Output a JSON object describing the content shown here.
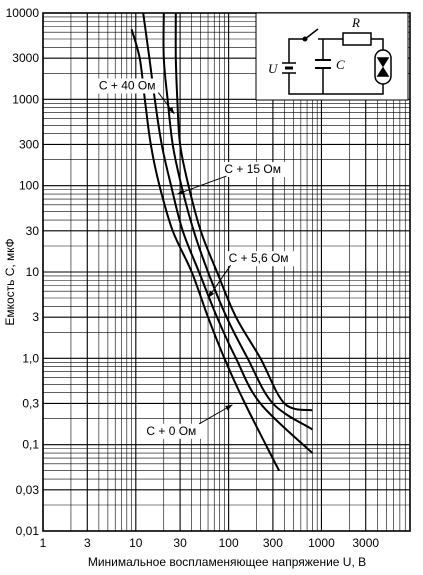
{
  "chart_data": {
    "type": "line",
    "title": "",
    "xlabel": "Минимальное воспламеняющее напряжение U, В",
    "ylabel": "Емкость C, мкФ",
    "xscale": "log",
    "yscale": "log",
    "xlim": [
      1,
      9000
    ],
    "ylim": [
      0.01,
      10000
    ],
    "grid": true,
    "x_ticks": [
      {
        "v": 1,
        "label": "1"
      },
      {
        "v": 3,
        "label": "3"
      },
      {
        "v": 10,
        "label": "10"
      },
      {
        "v": 30,
        "label": "30"
      },
      {
        "v": 100,
        "label": "100"
      },
      {
        "v": 300,
        "label": "300"
      },
      {
        "v": 1000,
        "label": "1000"
      },
      {
        "v": 3000,
        "label": "3000"
      }
    ],
    "y_ticks": [
      {
        "v": 10000,
        "label": "10000"
      },
      {
        "v": 3000,
        "label": "3000"
      },
      {
        "v": 1000,
        "label": "1000"
      },
      {
        "v": 300,
        "label": "300"
      },
      {
        "v": 100,
        "label": "100"
      },
      {
        "v": 30,
        "label": "30"
      },
      {
        "v": 10,
        "label": "10"
      },
      {
        "v": 3,
        "label": "3"
      },
      {
        "v": 1,
        "label": "1,0"
      },
      {
        "v": 0.3,
        "label": "0,3"
      },
      {
        "v": 0.1,
        "label": "0,1"
      },
      {
        "v": 0.03,
        "label": "0,03"
      },
      {
        "v": 0.01,
        "label": "0,01"
      }
    ],
    "series": [
      {
        "name": "C + 0 Ом",
        "points": [
          [
            9,
            6500
          ],
          [
            11,
            3000
          ],
          [
            12.5,
            1000
          ],
          [
            14.5,
            300
          ],
          [
            18,
            100
          ],
          [
            25,
            30
          ],
          [
            40,
            10
          ],
          [
            60,
            3
          ],
          [
            90,
            1
          ],
          [
            150,
            0.3
          ],
          [
            350,
            0.05
          ]
        ]
      },
      {
        "name": "C + 5,6 Ом",
        "points": [
          [
            12,
            10000
          ],
          [
            14,
            3000
          ],
          [
            16,
            1000
          ],
          [
            19,
            300
          ],
          [
            24,
            100
          ],
          [
            32,
            30
          ],
          [
            48,
            10
          ],
          [
            75,
            3
          ],
          [
            120,
            1
          ],
          [
            220,
            0.3
          ],
          [
            800,
            0.08
          ]
        ]
      },
      {
        "name": "C + 15 Ом",
        "points": [
          [
            20,
            10000
          ],
          [
            20,
            3000
          ],
          [
            22,
            1000
          ],
          [
            25,
            300
          ],
          [
            31,
            100
          ],
          [
            42,
            30
          ],
          [
            60,
            10
          ],
          [
            95,
            3
          ],
          [
            160,
            1
          ],
          [
            300,
            0.3
          ],
          [
            800,
            0.15
          ]
        ]
      },
      {
        "name": "C + 40 Ом",
        "points": [
          [
            27,
            10000
          ],
          [
            27,
            3000
          ],
          [
            28,
            1000
          ],
          [
            30,
            300
          ],
          [
            37,
            100
          ],
          [
            50,
            30
          ],
          [
            75,
            10
          ],
          [
            120,
            3
          ],
          [
            220,
            1
          ],
          [
            400,
            0.3
          ],
          [
            800,
            0.25
          ]
        ]
      }
    ],
    "annotations": [
      {
        "text": "C + 40 Ом",
        "x": 4,
        "y": 1300,
        "target": [
          26,
          680
        ]
      },
      {
        "text": "C + 15 Ом",
        "x": 90,
        "y": 140,
        "target": [
          28,
          80
        ]
      },
      {
        "text": "C + 5,6 Ом",
        "x": 100,
        "y": 13,
        "target": [
          60,
          5
        ]
      },
      {
        "text": "C + 0 Ом",
        "x": 13,
        "y": 0.13,
        "target": [
          110,
          0.29
        ]
      }
    ],
    "inset_circuit": {
      "labels": {
        "voltage": "U",
        "capacitor": "C",
        "resistor": "R"
      }
    }
  }
}
